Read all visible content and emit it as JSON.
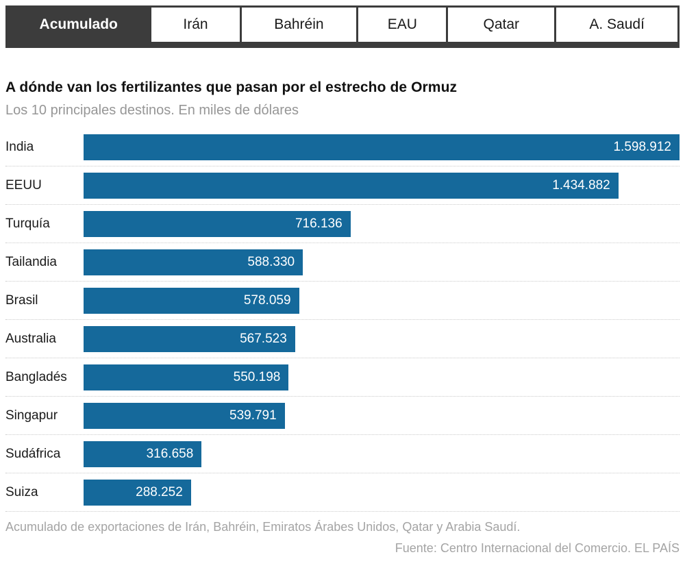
{
  "colors": {
    "bar": "#15699B",
    "active_tab": "#3C3C3C",
    "separator": "#CACACA",
    "muted_text": "#969696"
  },
  "tabs": [
    {
      "label": "Acumulado",
      "active": true
    },
    {
      "label": "Irán",
      "active": false
    },
    {
      "label": "Bahréin",
      "active": false
    },
    {
      "label": "EAU",
      "active": false
    },
    {
      "label": "Qatar",
      "active": false
    },
    {
      "label": "A. Saudí",
      "active": false
    }
  ],
  "header": {
    "title": "A dónde van los fertilizantes que pasan por el estrecho de Ormuz",
    "subtitle": "Los 10 principales destinos. En miles de dólares"
  },
  "chart_data": {
    "type": "bar",
    "orientation": "horizontal",
    "title": "A dónde van los fertilizantes que pasan por el estrecho de Ormuz",
    "subtitle": "Los 10 principales destinos. En miles de dólares",
    "unit": "miles de dólares",
    "categories": [
      "India",
      "EEUU",
      "Turquía",
      "Tailandia",
      "Brasil",
      "Australia",
      "Bangladés",
      "Singapur",
      "Sudáfrica",
      "Suiza"
    ],
    "values": [
      1598912,
      1434882,
      716136,
      588330,
      578059,
      567523,
      550198,
      539791,
      316658,
      288252
    ],
    "value_labels": [
      "1.598.912",
      "1.434.882",
      "716.136",
      "588.330",
      "578.059",
      "567.523",
      "550.198",
      "539.791",
      "316.658",
      "288.252"
    ],
    "xlim": [
      0,
      1598912
    ],
    "grid": false,
    "legend": false,
    "value_label_position": "inside-end"
  },
  "footer": {
    "note": "Acumulado de exportaciones de Irán, Bahréin, Emiratos Árabes Unidos, Qatar y Arabia Saudí.",
    "source": "Fuente: Centro Internacional del Comercio. EL PAÍS"
  }
}
